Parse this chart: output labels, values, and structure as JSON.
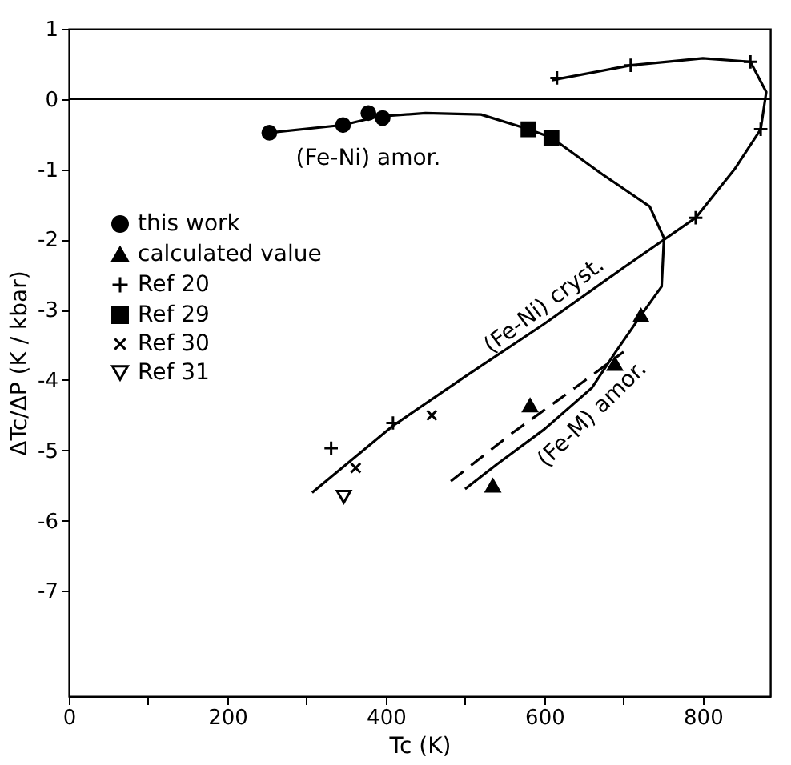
{
  "chart_data": {
    "type": "scatter",
    "xlabel": "Tc (K)",
    "ylabel": "ΔTc/ΔP (K / kbar)",
    "xlim": [
      0,
      885
    ],
    "ylim": [
      -8.5,
      1
    ],
    "xticks": [
      0,
      {
        "value": 100,
        "label": null
      },
      200,
      {
        "value": 300,
        "label": null
      },
      400,
      {
        "value": 500,
        "label": null
      },
      600,
      {
        "value": 700,
        "label": null
      },
      800
    ],
    "yticks": [
      1,
      0,
      -1,
      -2,
      -3,
      -4,
      -5,
      -6,
      -7
    ],
    "grid": false,
    "legend": "left",
    "ref_lines": [
      {
        "axis": "y",
        "value": 0,
        "color": "#000000"
      }
    ],
    "series": [
      {
        "name": "this work",
        "color": "#000000",
        "marker": "circle",
        "x": [
          253,
          346,
          378,
          396
        ],
        "values": [
          -0.48,
          -0.37,
          -0.2,
          -0.27
        ]
      },
      {
        "name": "calculated value",
        "color": "#000000",
        "marker": "triangle",
        "x": [
          722,
          689,
          582,
          535
        ],
        "values": [
          -3.08,
          -3.77,
          -4.36,
          -5.5
        ]
      },
      {
        "name": "Ref 20",
        "color": "#000000",
        "marker": "cross",
        "x": [
          616,
          709,
          860,
          873,
          791,
          331,
          409
        ],
        "values": [
          0.3,
          0.48,
          0.53,
          -0.43,
          -1.69,
          -4.97,
          -4.61
        ]
      },
      {
        "name": "Ref 29",
        "color": "#000000",
        "marker": "square",
        "x": [
          580,
          609
        ],
        "values": [
          -0.43,
          -0.55
        ]
      },
      {
        "name": "Ref 30",
        "color": "#000000",
        "marker": "x",
        "x": [
          362,
          458
        ],
        "values": [
          -5.25,
          -4.5
        ]
      },
      {
        "name": "Ref 31",
        "color": "#000000",
        "marker": "triangle-down",
        "x": [
          347
        ],
        "values": [
          -5.66
        ]
      },
      {
        "type": "line",
        "color": "#000000",
        "line_style": "solid",
        "x": [
          253,
          346,
          390,
          450,
          520,
          580,
          609,
          673,
          733,
          751,
          748,
          722,
          690,
          660,
          600,
          540,
          500
        ],
        "values": [
          -0.48,
          -0.37,
          -0.25,
          -0.2,
          -0.22,
          -0.43,
          -0.55,
          -1.07,
          -1.53,
          -1.98,
          -2.67,
          -3.08,
          -3.6,
          -4.11,
          -4.7,
          -5.2,
          -5.55
        ]
      },
      {
        "type": "line",
        "color": "#000000",
        "line_style": "dashed",
        "x": [
          482,
          560,
          640,
          700
        ],
        "values": [
          -5.44,
          -4.75,
          -4.1,
          -3.6
        ]
      },
      {
        "type": "line",
        "color": "#000000",
        "line_style": "solid",
        "x": [
          610,
          709,
          800,
          860,
          880,
          873,
          840,
          791,
          700,
          600,
          500,
          409,
          307
        ],
        "values": [
          0.27,
          0.48,
          0.58,
          0.53,
          0.1,
          -0.43,
          -1.0,
          -1.69,
          -2.4,
          -3.2,
          -3.95,
          -4.65,
          -5.6
        ]
      }
    ],
    "annotations": [
      "(Fe-Ni) amor.",
      "(Fe-Ni) cryst.",
      "(Fe-M) amor."
    ]
  }
}
